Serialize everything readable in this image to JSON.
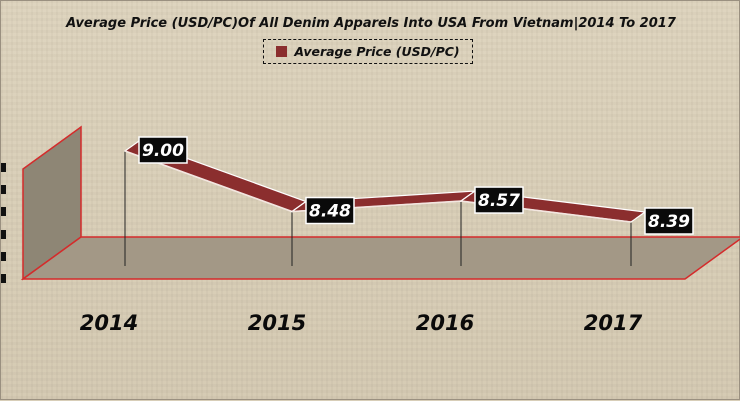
{
  "chart_data": {
    "type": "line",
    "title": "Average Price (USD/PC)Of All Denim Apparels Into USA From Vietnam|2014 To 2017",
    "categories": [
      "2014",
      "2015",
      "2016",
      "2017"
    ],
    "series": [
      {
        "name": "Average Price (USD/PC)",
        "values": [
          9.0,
          8.48,
          8.57,
          8.39
        ]
      }
    ],
    "data_labels": [
      "9.00",
      "8.48",
      "8.57",
      "8.39"
    ],
    "legend": "top-center",
    "style": "3d-ribbon",
    "colors": {
      "series": "#8b2e2e",
      "series_light": "#b5504a",
      "floor": "#a49886",
      "floor_edge": "#d42b2b",
      "label_bg": "#0a0a0a",
      "label_text": "#ffffff"
    }
  }
}
